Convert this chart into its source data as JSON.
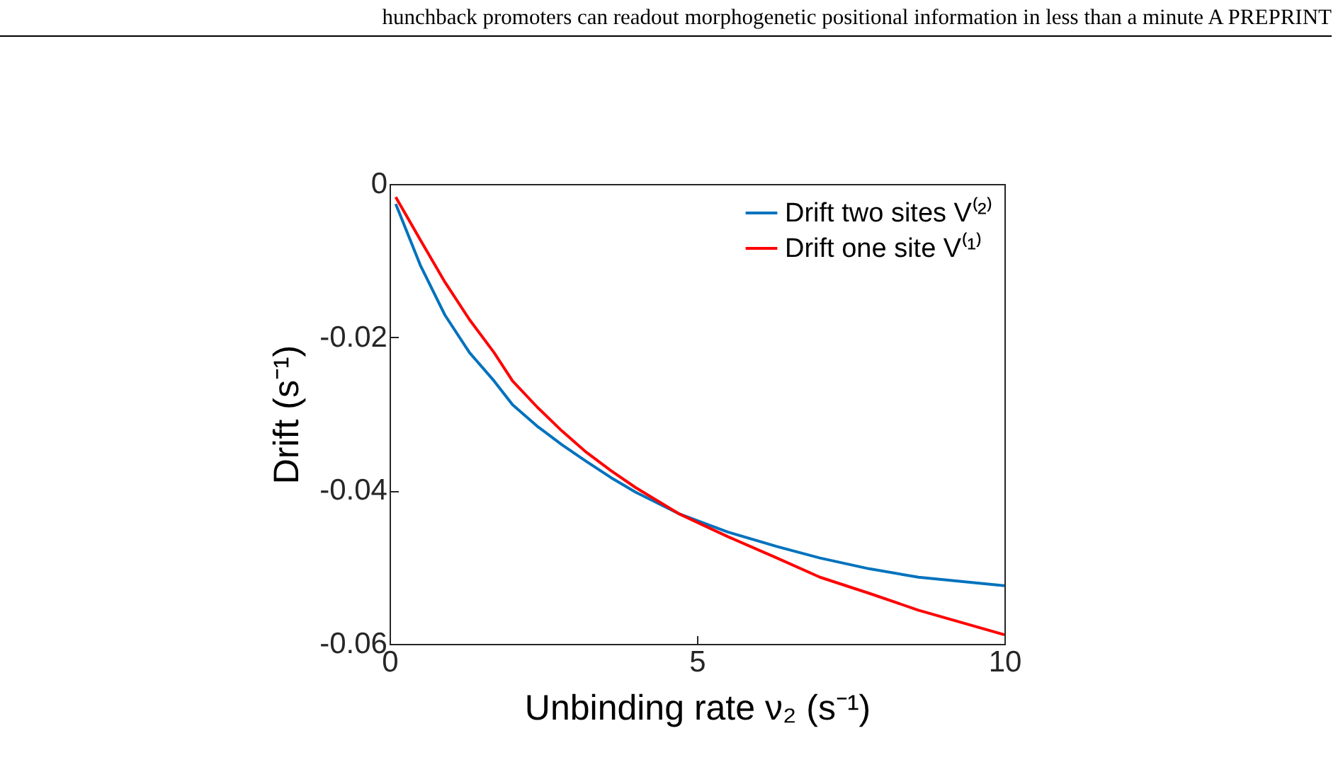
{
  "chart_data": {
    "type": "line",
    "annotations": [
      "hunchback promoters can readout morphogenetic positional information in less than a minute A PREPRINT"
    ],
    "xlabel": "Unbinding rate ν₂ (s⁻¹)",
    "ylabel": "Drift (s⁻¹)",
    "x": [
      0.1,
      0.5,
      0.9,
      1.3,
      1.7,
      2.0,
      2.4,
      2.8,
      3.2,
      3.6,
      4.0,
      4.7,
      5.5,
      6.3,
      7.0,
      7.8,
      8.6,
      10
    ],
    "series": [
      {
        "name": "Drift two sites V⁽²⁾",
        "color": "#0072bd",
        "values": [
          -0.0026,
          -0.0106,
          -0.0171,
          -0.022,
          -0.0257,
          -0.0288,
          -0.0316,
          -0.034,
          -0.0362,
          -0.0383,
          -0.0402,
          -0.043,
          -0.0454,
          -0.0473,
          -0.0488,
          -0.0502,
          -0.0513,
          -0.0524
        ]
      },
      {
        "name": "Drift one site V⁽¹⁾",
        "color": "#ff0000",
        "values": [
          -0.0017,
          -0.0073,
          -0.0128,
          -0.0177,
          -0.022,
          -0.0257,
          -0.0291,
          -0.0322,
          -0.035,
          -0.0374,
          -0.0396,
          -0.043,
          -0.046,
          -0.0488,
          -0.0513,
          -0.0534,
          -0.0556,
          -0.0588
        ]
      }
    ],
    "xlim": [
      0,
      10
    ],
    "xticks": [
      0,
      5,
      10
    ],
    "ylim": [
      -0.06,
      0
    ],
    "yticks": [
      -0.06,
      -0.04,
      -0.02,
      0
    ],
    "legend": "top right",
    "grid": false,
    "line_style": "solid",
    "marker": "none"
  }
}
